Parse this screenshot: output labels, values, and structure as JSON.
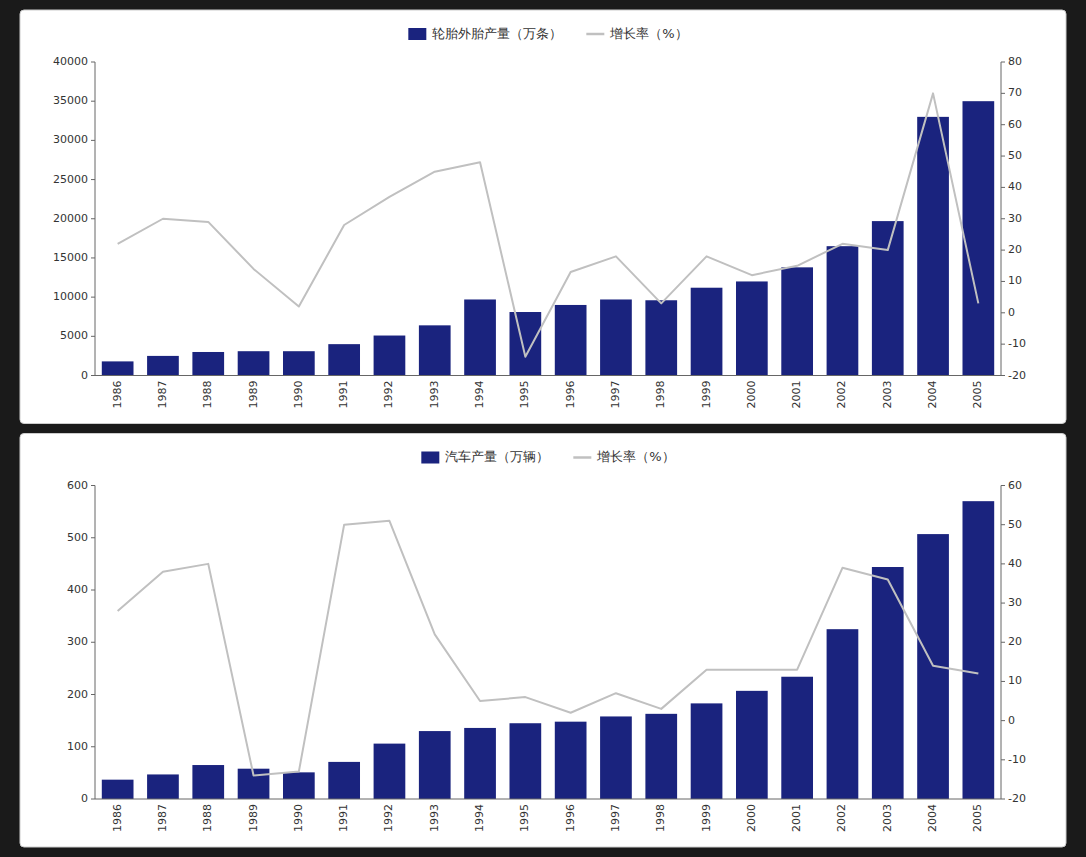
{
  "chart_data": [
    {
      "type": "bar",
      "categories": [
        "1986",
        "1987",
        "1988",
        "1989",
        "1990",
        "1991",
        "1992",
        "1993",
        "1994",
        "1995",
        "1996",
        "1997",
        "1998",
        "1999",
        "2000",
        "2001",
        "2002",
        "2003",
        "2004",
        "2005"
      ],
      "series": [
        {
          "name": "轮胎外胎产量（万条）",
          "type": "bar",
          "color": "#1a237e",
          "values": [
            1800,
            2500,
            3000,
            3100,
            3100,
            4000,
            5100,
            6400,
            9700,
            8100,
            9000,
            9700,
            9600,
            11200,
            12000,
            13800,
            16500,
            19700,
            33000,
            35000
          ]
        },
        {
          "name": "增长率（%）",
          "type": "line",
          "axis": "y2",
          "color": "#c0c0c0",
          "values": [
            22,
            30,
            29,
            14,
            2,
            28,
            37,
            45,
            48,
            -14,
            13,
            18,
            3,
            18,
            12,
            15,
            22,
            20,
            70,
            3
          ]
        }
      ],
      "ylim": [
        0,
        40000
      ],
      "yticks": [
        0,
        5000,
        10000,
        15000,
        20000,
        25000,
        30000,
        35000,
        40000
      ],
      "y2lim": [
        -20,
        80
      ],
      "y2ticks": [
        -20,
        -10,
        0,
        10,
        20,
        30,
        40,
        50,
        60,
        70,
        80
      ],
      "grid": false,
      "legend": "top"
    },
    {
      "type": "bar",
      "categories": [
        "1986",
        "1987",
        "1988",
        "1989",
        "1990",
        "1991",
        "1992",
        "1993",
        "1994",
        "1995",
        "1996",
        "1997",
        "1998",
        "1999",
        "2000",
        "2001",
        "2002",
        "2003",
        "2004",
        "2005"
      ],
      "series": [
        {
          "name": "汽车产量（万辆）",
          "type": "bar",
          "color": "#1a237e",
          "values": [
            37,
            47,
            65,
            58,
            51,
            71,
            106,
            130,
            136,
            145,
            148,
            158,
            163,
            183,
            207,
            234,
            325,
            444,
            507,
            570
          ]
        },
        {
          "name": "增长率（%）",
          "type": "line",
          "axis": "y2",
          "color": "#c0c0c0",
          "values": [
            28,
            38,
            40,
            -14,
            -13,
            50,
            51,
            22,
            5,
            6,
            2,
            7,
            3,
            13,
            13,
            13,
            39,
            36,
            14,
            12
          ]
        }
      ],
      "ylim": [
        0,
        600
      ],
      "yticks": [
        0,
        100,
        200,
        300,
        400,
        500,
        600
      ],
      "y2lim": [
        -20,
        60
      ],
      "y2ticks": [
        -20,
        -10,
        0,
        10,
        20,
        30,
        40,
        50,
        60
      ],
      "grid": false,
      "legend": "top"
    }
  ]
}
